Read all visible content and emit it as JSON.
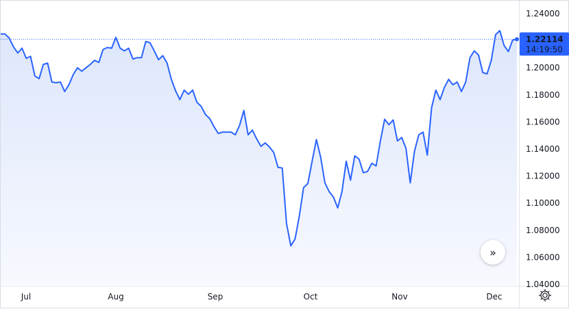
{
  "colors": {
    "line": "#2962ff",
    "fill_top": "#dde6fb",
    "fill_bottom": "#f7f9fe",
    "axis_text": "#131722",
    "badge_bg": "#2962ff",
    "badge_text": "#ffffff",
    "last_line": "#2962ff"
  },
  "icons": {
    "scroll": "chevron-double-right-icon",
    "settings": "gear-icon"
  },
  "price_badge": {
    "price": "1.22114",
    "time": "14:19:50"
  },
  "scroll_button": {
    "glyph": "»"
  },
  "chart_data": {
    "type": "area",
    "xlabel": "",
    "ylabel": "",
    "ylim": [
      1.04,
      1.24
    ],
    "grid": false,
    "x_ticks": [
      "Jul",
      "Aug",
      "Sep",
      "Oct",
      "Nov",
      "Dec"
    ],
    "y_ticks": [
      "1.24000",
      "1.22000",
      "1.20000",
      "1.18000",
      "1.16000",
      "1.14000",
      "1.12000",
      "1.10000",
      "1.08000",
      "1.06000",
      "1.04000"
    ],
    "last_value": 1.22114,
    "series": [
      {
        "values": [
          1.225,
          1.225,
          1.222,
          1.2155,
          1.211,
          1.2145,
          1.207,
          1.2085,
          1.194,
          1.192,
          1.2025,
          1.2035,
          1.1895,
          1.189,
          1.1895,
          1.1825,
          1.1875,
          1.195,
          1.2,
          1.1975,
          1.2,
          1.2025,
          1.2055,
          1.204,
          1.2135,
          1.215,
          1.2145,
          1.2225,
          1.2145,
          1.2125,
          1.2145,
          1.2065,
          1.2075,
          1.2075,
          1.2195,
          1.2185,
          1.2125,
          1.206,
          1.209,
          1.2035,
          1.1915,
          1.183,
          1.1765,
          1.1835,
          1.1805,
          1.1835,
          1.1745,
          1.1715,
          1.1655,
          1.1625,
          1.1565,
          1.1515,
          1.1525,
          1.1525,
          1.1525,
          1.1505,
          1.1575,
          1.1685,
          1.1505,
          1.154,
          1.1475,
          1.142,
          1.1445,
          1.1415,
          1.1375,
          1.1265,
          1.126,
          1.085,
          1.0685,
          1.0735,
          1.0905,
          1.1115,
          1.1145,
          1.131,
          1.147,
          1.134,
          1.115,
          1.1085,
          1.1045,
          1.0965,
          1.1085,
          1.131,
          1.117,
          1.135,
          1.1325,
          1.1225,
          1.1235,
          1.1295,
          1.1275,
          1.146,
          1.162,
          1.158,
          1.1615,
          1.146,
          1.1485,
          1.1405,
          1.115,
          1.1385,
          1.1505,
          1.1525,
          1.1355,
          1.1705,
          1.1835,
          1.1765,
          1.1855,
          1.1915,
          1.1875,
          1.1895,
          1.1825,
          1.1895,
          1.2075,
          1.2125,
          1.2095,
          1.1965,
          1.1955,
          1.2055,
          1.2245,
          1.2275,
          1.2165,
          1.212,
          1.2205,
          1.22114
        ]
      }
    ]
  }
}
